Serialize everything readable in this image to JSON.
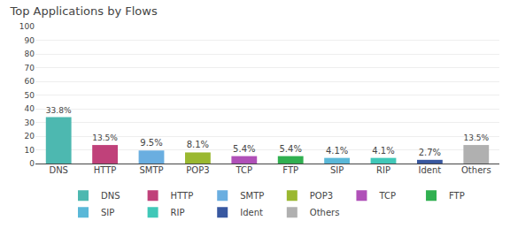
{
  "chart_data": {
    "type": "bar",
    "title": "Top Applications by Flows",
    "categories": [
      "DNS",
      "HTTP",
      "SMTP",
      "POP3",
      "TCP",
      "FTP",
      "SIP",
      "RIP",
      "Ident",
      "Others"
    ],
    "values": [
      33.8,
      13.5,
      9.5,
      8.1,
      5.4,
      5.4,
      4.1,
      4.1,
      2.7,
      13.5
    ],
    "value_labels": [
      "33.8%",
      "13.5%",
      "9.5%",
      "8.1%",
      "5.4%",
      "5.4%",
      "4.1%",
      "4.1%",
      "2.7%",
      "13.5%"
    ],
    "colors": [
      "#4db8b0",
      "#c0417a",
      "#6aaee0",
      "#9ab830",
      "#b050b8",
      "#30b050",
      "#5ab8d8",
      "#40c8b8",
      "#3858a0",
      "#b0b0b0"
    ],
    "ylim": [
      0,
      100
    ],
    "yticks": [
      0,
      10,
      20,
      30,
      40,
      50,
      60,
      70,
      80,
      90,
      100
    ],
    "grid": true,
    "data_labels": true,
    "legend": "bottom"
  }
}
